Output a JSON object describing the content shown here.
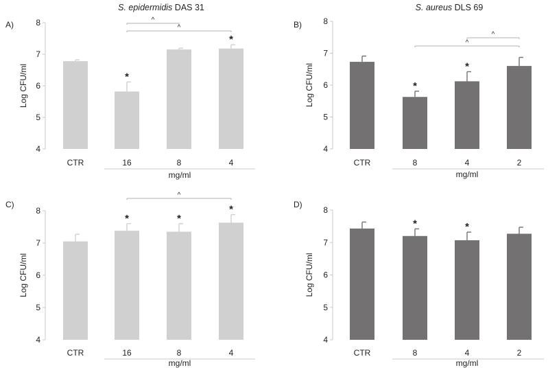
{
  "colors": {
    "light_bar": "#d0d0d0",
    "dark_bar": "#737171",
    "axis": "#c8c8c8",
    "bracket": "#b0b0b0",
    "text": "#222222"
  },
  "titles": {
    "left_italic": "S. epidermidis",
    "left_rest": " DAS 31",
    "right_italic": "S. aureus",
    "right_rest": " DLS 69"
  },
  "chart_data": [
    {
      "panel": "A)",
      "type": "bar",
      "color": "light",
      "categories": [
        "CTR",
        "16",
        "8",
        "4"
      ],
      "values": [
        6.78,
        5.82,
        7.15,
        7.18
      ],
      "errors": [
        0.04,
        0.3,
        0.04,
        0.12
      ],
      "significant": [
        false,
        true,
        false,
        true
      ],
      "xlabel": "mg/ml",
      "ylabel": "Log CFU/ml",
      "ylim": [
        4,
        8
      ],
      "yticks": [
        4,
        5,
        6,
        7,
        8
      ],
      "brackets": [
        {
          "from": 1,
          "to": 2,
          "label": "^"
        },
        {
          "from": 1,
          "to": 3,
          "label": "^"
        }
      ]
    },
    {
      "panel": "B)",
      "type": "bar",
      "color": "dark",
      "categories": [
        "CTR",
        "8",
        "4",
        "2"
      ],
      "values": [
        6.73,
        5.63,
        6.12,
        6.6
      ],
      "errors": [
        0.18,
        0.18,
        0.3,
        0.27
      ],
      "significant": [
        false,
        true,
        true,
        false
      ],
      "xlabel": "mg/ml",
      "ylabel": "Log CFU/ml",
      "ylim": [
        4,
        8
      ],
      "yticks": [
        4,
        5,
        6,
        7,
        8
      ],
      "brackets": [
        {
          "from": 2,
          "to": 3,
          "label": "^"
        },
        {
          "from": 1,
          "to": 3,
          "label": "^"
        }
      ]
    },
    {
      "panel": "C)",
      "type": "bar",
      "color": "light",
      "categories": [
        "CTR",
        "16",
        "8",
        "4"
      ],
      "values": [
        7.05,
        7.38,
        7.35,
        7.63
      ],
      "errors": [
        0.22,
        0.22,
        0.25,
        0.25
      ],
      "significant": [
        false,
        true,
        true,
        true
      ],
      "xlabel": "mg/ml",
      "ylabel": "Log CFU/ml",
      "ylim": [
        4,
        8
      ],
      "yticks": [
        4,
        5,
        6,
        7,
        8
      ],
      "brackets": [
        {
          "from": 1,
          "to": 3,
          "label": "^"
        }
      ]
    },
    {
      "panel": "D)",
      "type": "bar",
      "color": "dark",
      "categories": [
        "CTR",
        "8",
        "4",
        "2"
      ],
      "values": [
        7.43,
        7.2,
        7.07,
        7.27
      ],
      "errors": [
        0.2,
        0.22,
        0.25,
        0.2
      ],
      "significant": [
        false,
        true,
        true,
        false
      ],
      "xlabel": "mg/ml",
      "ylabel": "Log CFU/ml",
      "ylim": [
        4,
        8
      ],
      "yticks": [
        4,
        5,
        6,
        7,
        8
      ],
      "brackets": []
    }
  ]
}
